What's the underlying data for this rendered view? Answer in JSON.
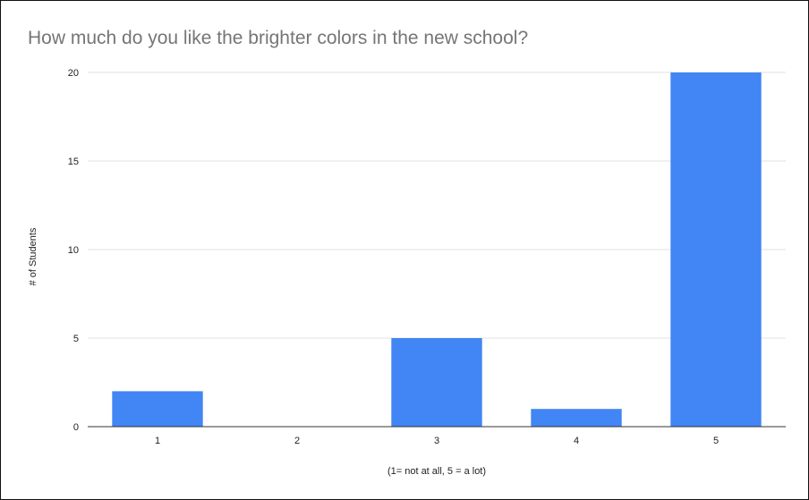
{
  "chart_data": {
    "type": "bar",
    "title": "How much do you like the brighter colors in the new school?",
    "xlabel": "(1= not at all, 5 = a lot)",
    "ylabel": "# of Students",
    "categories": [
      "1",
      "2",
      "3",
      "4",
      "5"
    ],
    "values": [
      2,
      0,
      5,
      1,
      20
    ],
    "ylim": [
      0,
      20
    ],
    "yticks": [
      0,
      5,
      10,
      15,
      20
    ],
    "grid": true,
    "legend": "none",
    "colors": {
      "bar": "#4285F4",
      "grid": "#e0e0e0",
      "axis": "#333333",
      "title": "#757575"
    }
  }
}
